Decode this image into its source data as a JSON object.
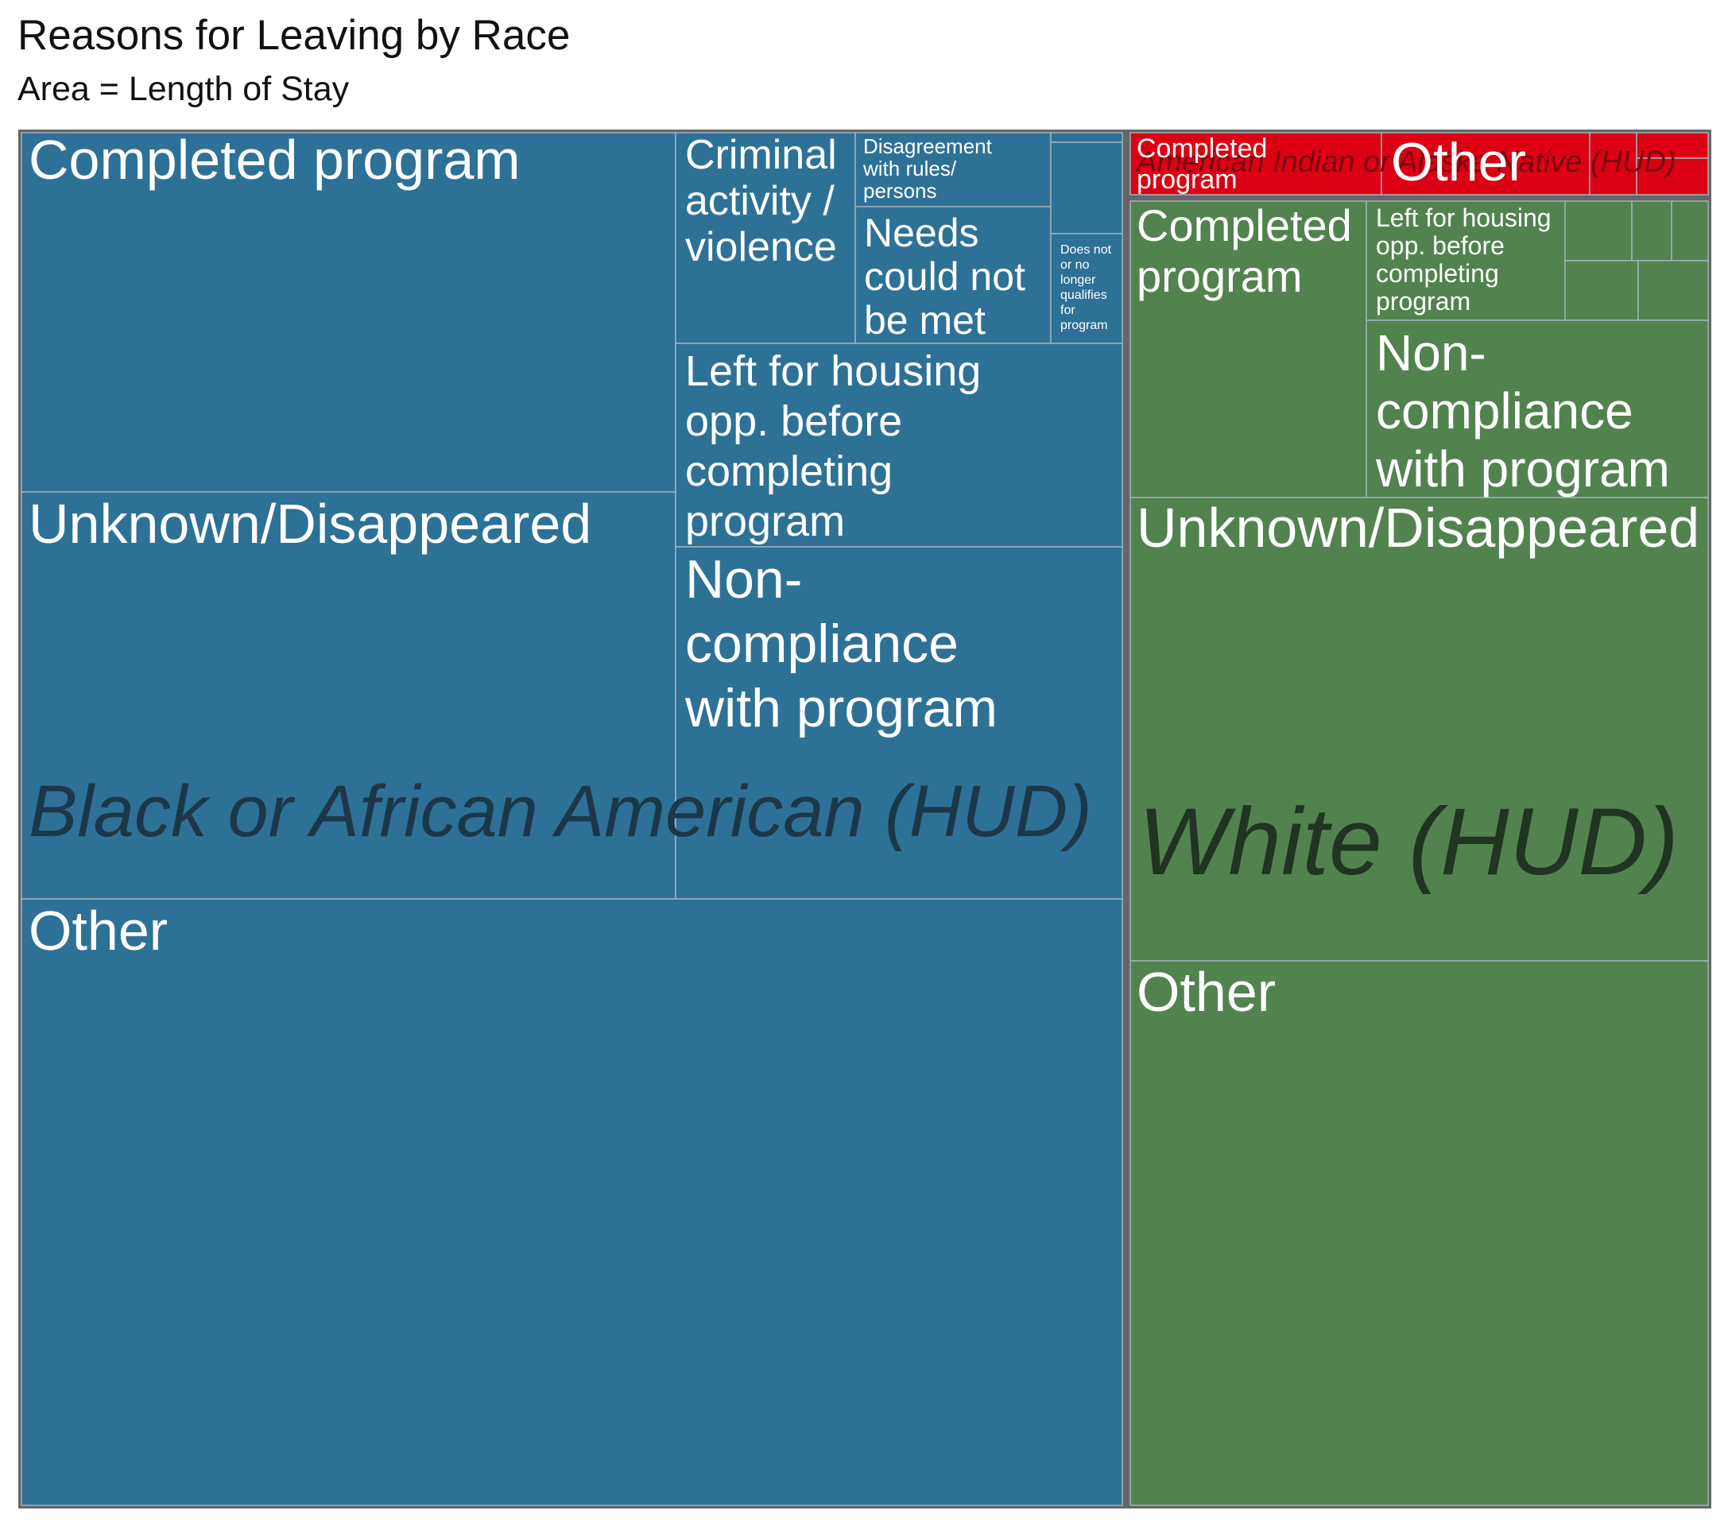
{
  "chart_data": {
    "type": "treemap",
    "title": "Reasons for Leaving by Race",
    "subtitle": "Area = Length of Stay",
    "colors": {
      "black": "#2e7196",
      "white": "#52834e",
      "native": "#dc0014",
      "border": "#666666",
      "cell_border": "#9fb2bd"
    },
    "groups": [
      {
        "name": "Black or African American (HUD)",
        "color": "#2e7196",
        "label_color": "#1c3748",
        "children": [
          {
            "name": "Completed program",
            "value": 14.1
          },
          {
            "name": "Unknown/Disappeared",
            "value": 16.0
          },
          {
            "name": "Criminal activity / violence",
            "value": 2.2
          },
          {
            "name": "Disagreement with rules/ persons",
            "value": 1.0
          },
          {
            "name": "Needs could not be met",
            "value": 1.5
          },
          {
            "name": "Does not or no longer qualifies for program",
            "value": 0.5
          },
          {
            "name": "",
            "value": 0.9
          },
          {
            "name": "Left for housing opp. before completing program",
            "value": 4.3
          },
          {
            "name": "Non-compliance with program",
            "value": 7.4
          },
          {
            "name": "Other",
            "value": 40.0
          }
        ]
      },
      {
        "name": "White (HUD)",
        "color": "#52834e",
        "label_color": "#1f3520",
        "children": [
          {
            "name": "Completed program",
            "value": 3.9
          },
          {
            "name": "Left for housing opp. before completing program",
            "value": 2.2
          },
          {
            "name": "",
            "value": 1.8
          },
          {
            "name": "Non-compliance with program",
            "value": 3.9
          },
          {
            "name": "Unknown/Disappeared",
            "value": 10.6
          },
          {
            "name": "Other",
            "value": 12.4
          }
        ]
      },
      {
        "name": "American Indian or Alaska Native (HUD)",
        "color": "#dc0014",
        "label_color": "#7a0510",
        "children": [
          {
            "name": "Completed program",
            "value": 0.5
          },
          {
            "name": "Other",
            "value": 0.4
          },
          {
            "name": "",
            "value": 0.2
          }
        ]
      }
    ]
  }
}
